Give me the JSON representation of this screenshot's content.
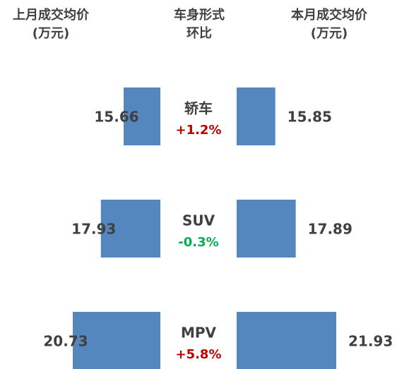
{
  "chart_data": {
    "type": "butterfly",
    "center_title": [
      "车身形式",
      "环比"
    ],
    "categories": [
      "轿车",
      "SUV",
      "MPV"
    ],
    "series": [
      {
        "name": "上月成交均价",
        "unit": "(万元)",
        "color": "#5587bf",
        "values": [
          15.66,
          17.93,
          20.73
        ]
      },
      {
        "name": "本月成交均价",
        "unit": "(万元)",
        "color": "#5587bf",
        "values": [
          15.85,
          17.89,
          21.93
        ]
      }
    ],
    "changes": [
      1.2,
      -0.3,
      5.8
    ],
    "change_labels": [
      "+1.2%",
      "-0.3%",
      "+5.8%"
    ],
    "positive_color": "#c00000",
    "negative_color": "#00b050",
    "xlim": [
      12,
      22
    ]
  }
}
